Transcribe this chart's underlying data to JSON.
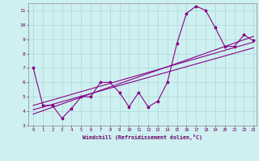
{
  "xlabel": "Windchill (Refroidissement éolien,°C)",
  "ylabel": "",
  "xlim": [
    -0.5,
    23.3
  ],
  "ylim": [
    3,
    11.5
  ],
  "yticks": [
    3,
    4,
    5,
    6,
    7,
    8,
    9,
    10,
    11
  ],
  "xticks": [
    0,
    1,
    2,
    3,
    4,
    5,
    6,
    7,
    8,
    9,
    10,
    11,
    12,
    13,
    14,
    15,
    16,
    17,
    18,
    19,
    20,
    21,
    22,
    23
  ],
  "background_color": "#cff0f0",
  "grid_color": "#aad8d8",
  "line_color": "#880088",
  "main_line_x": [
    0,
    1,
    2,
    3,
    4,
    5,
    6,
    7,
    8,
    9,
    10,
    11,
    12,
    13,
    14,
    15,
    16,
    17,
    18,
    19,
    20,
    21,
    22,
    23
  ],
  "main_line_y": [
    7.0,
    4.4,
    4.4,
    3.5,
    4.2,
    5.0,
    5.0,
    6.0,
    6.0,
    5.3,
    4.3,
    5.3,
    4.3,
    4.7,
    6.0,
    8.7,
    10.8,
    11.3,
    11.0,
    9.8,
    8.5,
    8.5,
    9.3,
    8.9
  ],
  "trend1_x": [
    0,
    23
  ],
  "trend1_y": [
    4.4,
    8.8
  ],
  "trend2_x": [
    0,
    23
  ],
  "trend2_y": [
    4.1,
    8.4
  ],
  "trend3_x": [
    0,
    23
  ],
  "trend3_y": [
    3.8,
    9.2
  ]
}
